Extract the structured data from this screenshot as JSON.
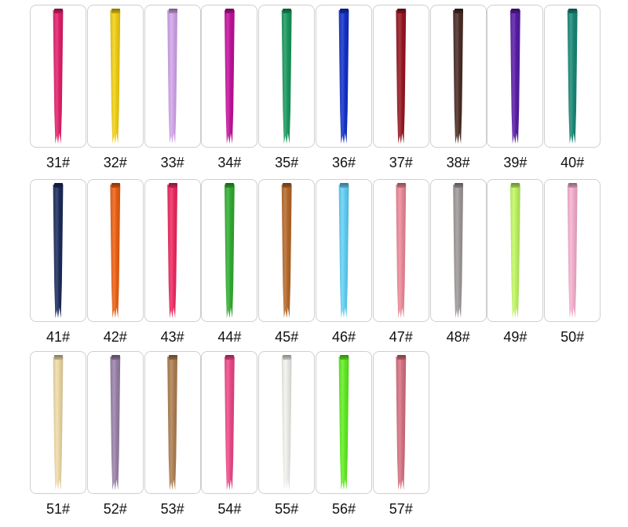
{
  "swatches": [
    {
      "label": "31#",
      "color": "#e4206c"
    },
    {
      "label": "32#",
      "color": "#f4d012"
    },
    {
      "label": "33#",
      "color": "#d2a6ec"
    },
    {
      "label": "34#",
      "color": "#c4129e"
    },
    {
      "label": "35#",
      "color": "#1a9a5e"
    },
    {
      "label": "36#",
      "color": "#1232cc"
    },
    {
      "label": "37#",
      "color": "#981622"
    },
    {
      "label": "38#",
      "color": "#4a2c24"
    },
    {
      "label": "39#",
      "color": "#5a1ca8"
    },
    {
      "label": "40#",
      "color": "#1a8a78"
    },
    {
      "label": "41#",
      "color": "#1c2c5c"
    },
    {
      "label": "42#",
      "color": "#ee6012"
    },
    {
      "label": "43#",
      "color": "#f02a62"
    },
    {
      "label": "44#",
      "color": "#32b032"
    },
    {
      "label": "45#",
      "color": "#b86a2a"
    },
    {
      "label": "46#",
      "color": "#62d2f8"
    },
    {
      "label": "47#",
      "color": "#f08a9a"
    },
    {
      "label": "48#",
      "color": "#a09a9a"
    },
    {
      "label": "49#",
      "color": "#c2f862"
    },
    {
      "label": "50#",
      "color": "#f8b2d0"
    },
    {
      "label": "51#",
      "color": "#f0dca8"
    },
    {
      "label": "52#",
      "color": "#9a82a8"
    },
    {
      "label": "53#",
      "color": "#b08052"
    },
    {
      "label": "54#",
      "color": "#f04a8a"
    },
    {
      "label": "55#",
      "color": "#f2f2ee"
    },
    {
      "label": "56#",
      "color": "#62f022"
    },
    {
      "label": "57#",
      "color": "#d87282"
    }
  ]
}
